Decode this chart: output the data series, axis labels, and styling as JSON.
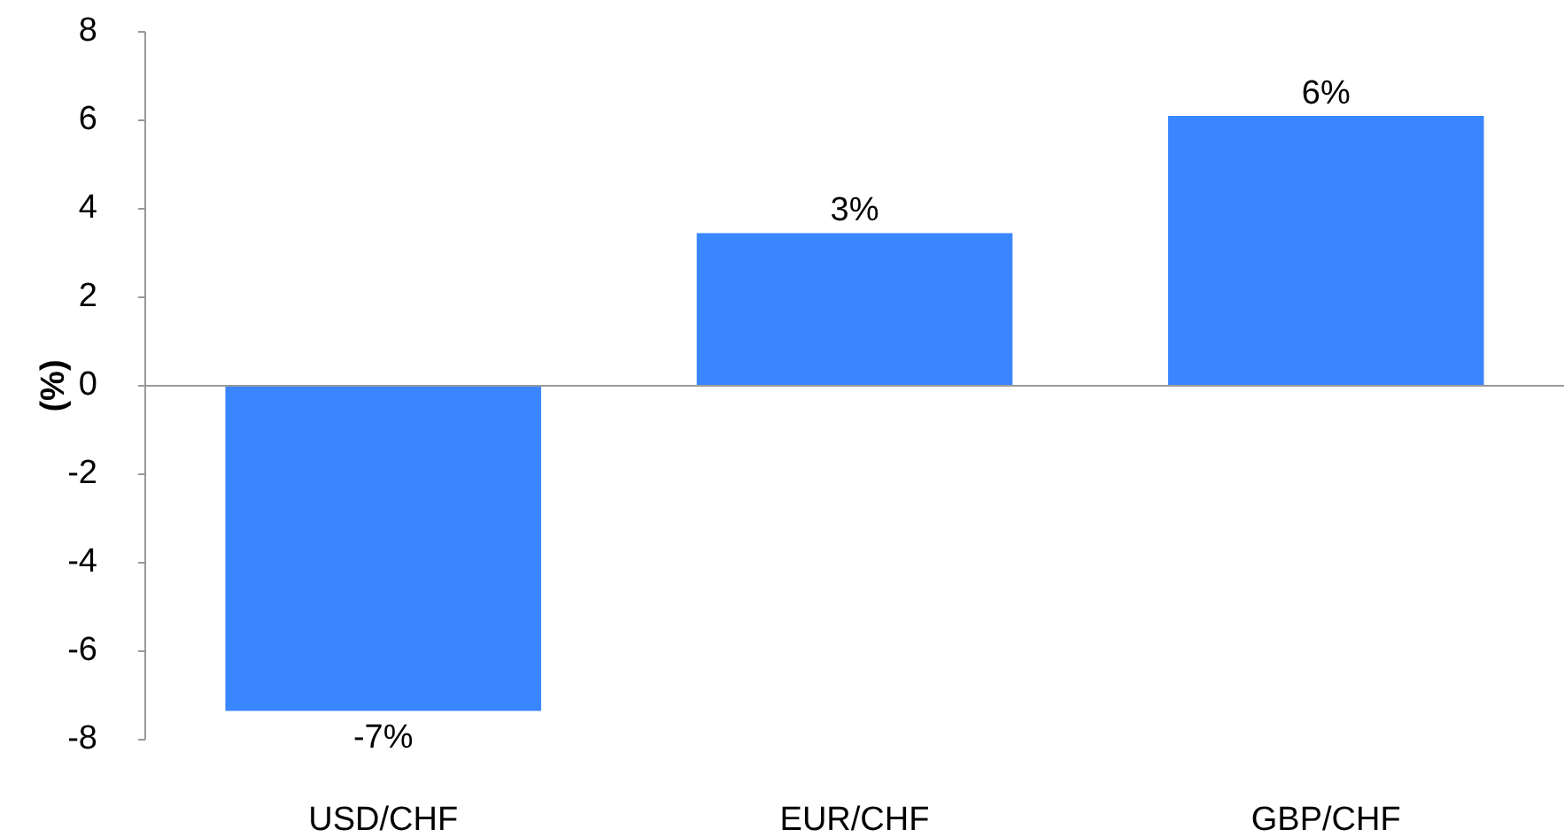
{
  "chart_data": {
    "type": "bar",
    "ylabel": "(%)",
    "categories": [
      "USD/CHF",
      "EUR/CHF",
      "GBP/CHF"
    ],
    "values": [
      -7.35,
      3.45,
      6.1
    ],
    "value_labels": [
      "-7%",
      "3%",
      "6%"
    ],
    "color": "#3a86ff",
    "ylim": [
      -8,
      8
    ],
    "yticks": [
      -8,
      -6,
      -4,
      -2,
      0,
      2,
      4,
      6,
      8
    ]
  }
}
